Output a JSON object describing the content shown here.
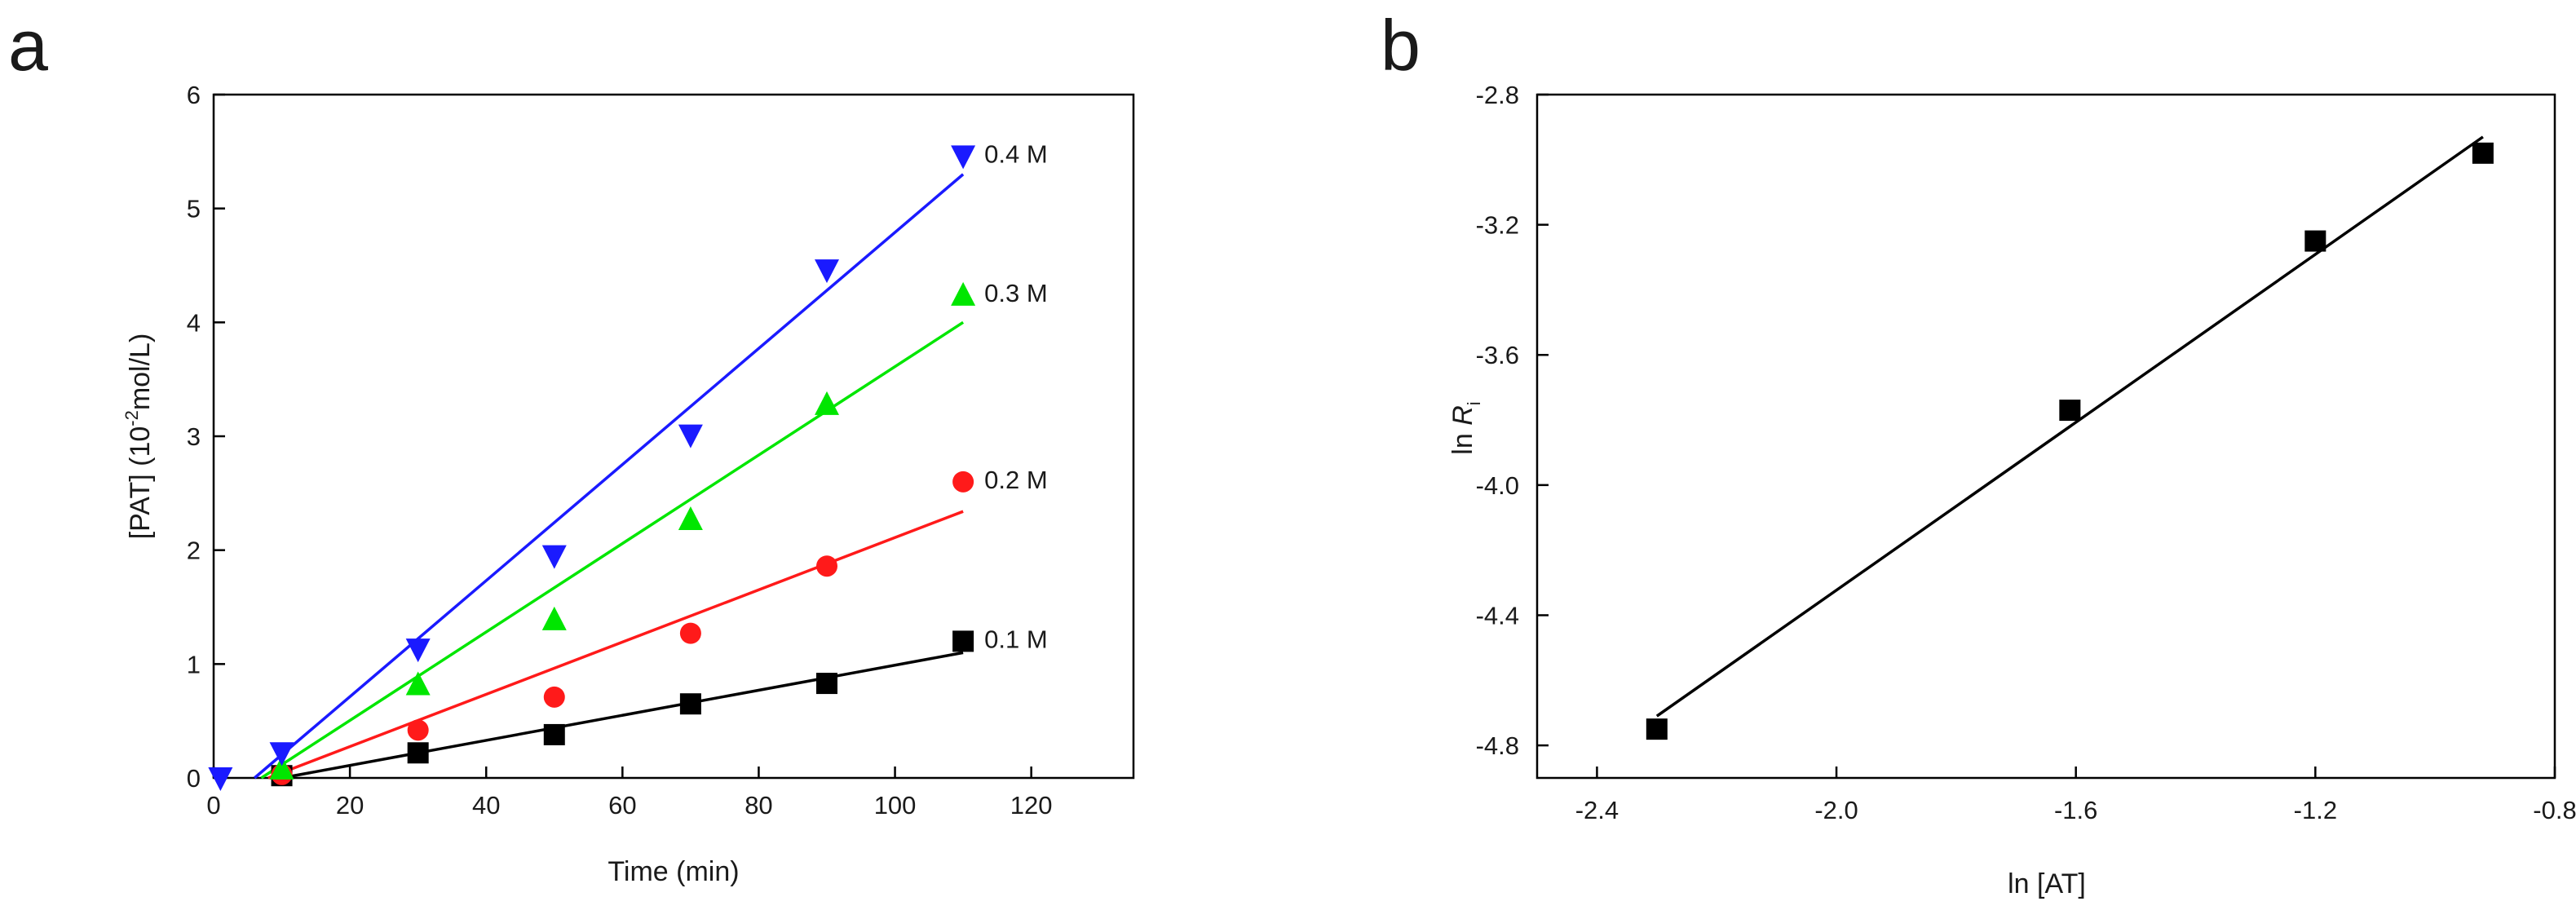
{
  "figure": {
    "panel_a_letter": "a",
    "panel_b_letter": "b"
  },
  "chart_data": [
    {
      "type": "scatter",
      "panel": "a",
      "title": "",
      "xlabel": "Time (min)",
      "ylabel_prefix": "[PAT] (10",
      "ylabel_exp": "-2",
      "ylabel_suffix": "mol/L)",
      "xlim": [
        0,
        135
      ],
      "ylim": [
        0,
        6
      ],
      "xticks": [
        0,
        20,
        40,
        60,
        80,
        100,
        120
      ],
      "yticks": [
        0,
        1,
        2,
        3,
        4,
        5,
        6
      ],
      "series": [
        {
          "name": "0.1 M",
          "marker": "square",
          "color": "#000000",
          "x": [
            10,
            30,
            50,
            70,
            90,
            110
          ],
          "y": [
            0.02,
            0.22,
            0.38,
            0.65,
            0.83,
            1.2
          ],
          "fit": {
            "x": [
              10,
              110
            ],
            "y": [
              0.0,
              1.1
            ]
          }
        },
        {
          "name": "0.2 M",
          "marker": "circle",
          "color": "#ff1a1a",
          "x": [
            10,
            30,
            50,
            70,
            90,
            110
          ],
          "y": [
            0.03,
            0.42,
            0.71,
            1.27,
            1.86,
            2.6
          ],
          "fit": {
            "x": [
              8,
              110
            ],
            "y": [
              0.0,
              2.34
            ]
          }
        },
        {
          "name": "0.3 M",
          "marker": "triangle-up",
          "color": "#00e600",
          "x": [
            10,
            30,
            50,
            70,
            90,
            110
          ],
          "y": [
            0.08,
            0.82,
            1.39,
            2.27,
            3.28,
            4.24
          ],
          "fit": {
            "x": [
              7,
              110
            ],
            "y": [
              0.0,
              4.0
            ]
          }
        },
        {
          "name": "0.4 M",
          "marker": "triangle-down",
          "color": "#1a1aff",
          "x": [
            1,
            10,
            30,
            50,
            70,
            90,
            110
          ],
          "y": [
            0.0,
            0.22,
            1.13,
            1.95,
            3.01,
            4.46,
            5.46
          ],
          "fit": {
            "x": [
              6,
              110
            ],
            "y": [
              0.0,
              5.3
            ]
          }
        }
      ]
    },
    {
      "type": "scatter",
      "panel": "b",
      "title": "",
      "xlabel": "ln [AT]",
      "ylabel_prefix": "ln ",
      "ylabel_italic": "R",
      "ylabel_sub": "i",
      "xlim": [
        -2.5,
        -0.8
      ],
      "ylim": [
        -4.9,
        -2.8
      ],
      "xticks": [
        "-2.4",
        "-2.0",
        "-1.6",
        "-1.2",
        "-0.8"
      ],
      "yticks": [
        "-2.8",
        "-3.2",
        "-3.6",
        "-4.0",
        "-4.4",
        "-4.8"
      ],
      "series": [
        {
          "name": "ln Ri",
          "marker": "square",
          "color": "#000000",
          "x": [
            -2.3,
            -1.61,
            -1.2,
            -0.92
          ],
          "y": [
            -4.75,
            -3.77,
            -3.25,
            -2.98
          ],
          "fit": {
            "x": [
              -2.3,
              -0.92
            ],
            "y": [
              -4.71,
              -2.93
            ]
          }
        }
      ]
    }
  ]
}
